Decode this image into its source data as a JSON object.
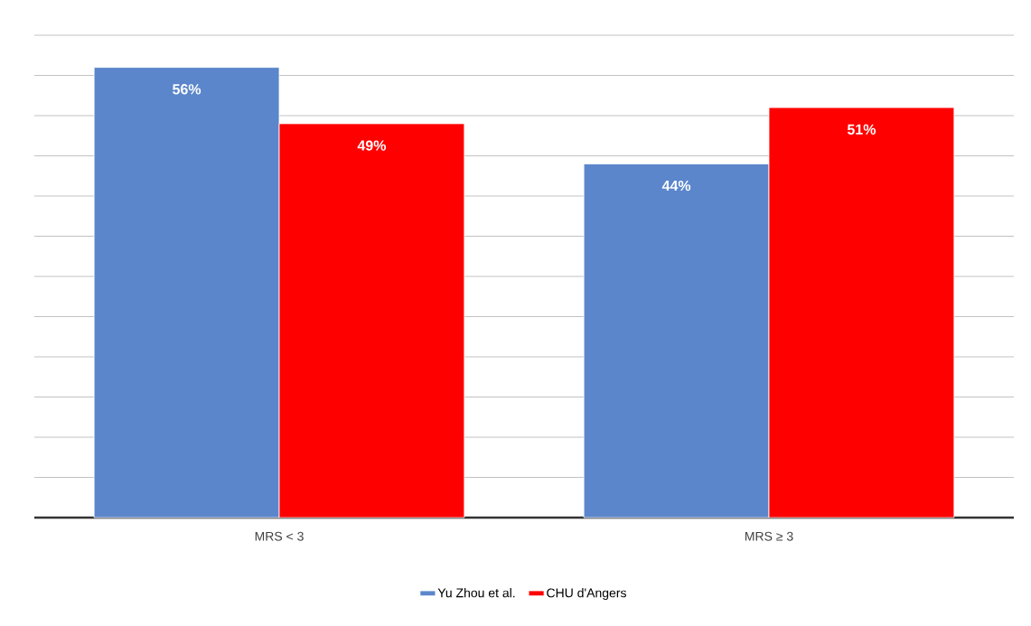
{
  "chart_data": {
    "type": "bar",
    "categories": [
      "MRS < 3",
      "MRS  ≥ 3"
    ],
    "series": [
      {
        "name": "Yu Zhou et al.",
        "color": "#5b86cb",
        "values": [
          56,
          44
        ],
        "value_labels": [
          "56%",
          "44%"
        ]
      },
      {
        "name": "CHU d'Angers",
        "color": "#ff0000",
        "values": [
          49,
          51
        ],
        "value_labels": [
          "49%",
          "51%"
        ]
      }
    ],
    "ylim": [
      0,
      60
    ],
    "grid": "y",
    "legend": "bottom"
  }
}
